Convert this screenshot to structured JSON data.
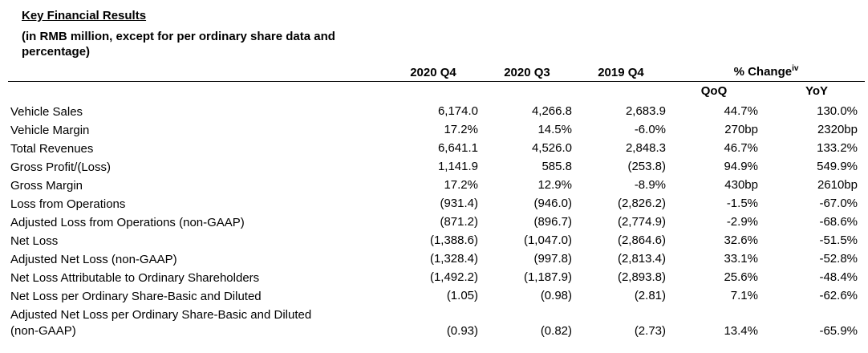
{
  "title": "Key Financial Results",
  "subtitle": "(in RMB million, except for per ordinary share data and percentage)",
  "columns": {
    "q4_2020": "2020 Q4",
    "q3_2020": "2020 Q3",
    "q4_2019": "2019 Q4",
    "change": "% Change",
    "change_sup": "iv",
    "qoq": "QoQ",
    "yoy": "YoY"
  },
  "rows": [
    {
      "label": "Vehicle Sales",
      "q4_2020": "6,174.0",
      "q3_2020": "4,266.8",
      "q4_2019": "2,683.9",
      "qoq": "44.7%",
      "yoy": "130.0%"
    },
    {
      "label": "Vehicle Margin",
      "q4_2020": "17.2%",
      "q3_2020": "14.5%",
      "q4_2019": "-6.0%",
      "qoq": "270bp",
      "yoy": "2320bp"
    },
    {
      "label": "Total Revenues",
      "q4_2020": "6,641.1",
      "q3_2020": "4,526.0",
      "q4_2019": "2,848.3",
      "qoq": "46.7%",
      "yoy": "133.2%"
    },
    {
      "label": "Gross Profit/(Loss)",
      "q4_2020": "1,141.9",
      "q3_2020": "585.8",
      "q4_2019": "(253.8)",
      "qoq": "94.9%",
      "yoy": "549.9%"
    },
    {
      "label": "Gross Margin",
      "q4_2020": "17.2%",
      "q3_2020": "12.9%",
      "q4_2019": "-8.9%",
      "qoq": "430bp",
      "yoy": "2610bp"
    },
    {
      "label": "Loss from Operations",
      "q4_2020": "(931.4)",
      "q3_2020": "(946.0)",
      "q4_2019": "(2,826.2)",
      "qoq": "-1.5%",
      "yoy": "-67.0%"
    },
    {
      "label": "Adjusted Loss from Operations (non-GAAP)",
      "q4_2020": "(871.2)",
      "q3_2020": "(896.7)",
      "q4_2019": "(2,774.9)",
      "qoq": "-2.9%",
      "yoy": "-68.6%"
    },
    {
      "label": "Net Loss",
      "q4_2020": "(1,388.6)",
      "q3_2020": "(1,047.0)",
      "q4_2019": "(2,864.6)",
      "qoq": "32.6%",
      "yoy": "-51.5%"
    },
    {
      "label": "Adjusted Net Loss (non-GAAP)",
      "q4_2020": "(1,328.4)",
      "q3_2020": "(997.8)",
      "q4_2019": "(2,813.4)",
      "qoq": "33.1%",
      "yoy": "-52.8%"
    },
    {
      "label": "Net Loss Attributable to Ordinary Shareholders",
      "q4_2020": "(1,492.2)",
      "q3_2020": "(1,187.9)",
      "q4_2019": "(2,893.8)",
      "qoq": "25.6%",
      "yoy": "-48.4%"
    },
    {
      "label": "Net Loss per Ordinary Share-Basic and Diluted",
      "q4_2020": "(1.05)",
      "q3_2020": "(0.98)",
      "q4_2019": "(2.81)",
      "qoq": "7.1%",
      "yoy": "-62.6%"
    },
    {
      "label": "Adjusted Net Loss per Ordinary Share-Basic and Diluted (non-GAAP)",
      "q4_2020": "(0.93)",
      "q3_2020": "(0.82)",
      "q4_2019": "(2.73)",
      "qoq": "13.4%",
      "yoy": "-65.9%"
    }
  ]
}
